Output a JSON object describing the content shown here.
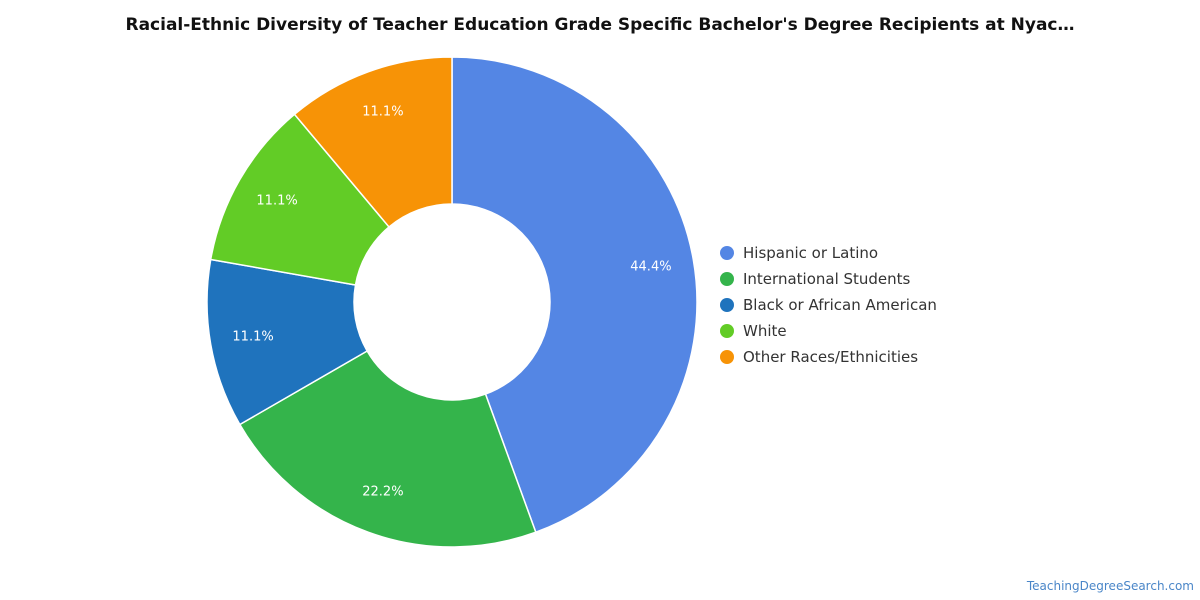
{
  "chart_data": {
    "type": "pie",
    "variant": "donut",
    "title": "Racial-Ethnic Diversity of Teacher Education Grade Specific Bachelor's Degree Recipients at Nyac…",
    "legend_position": "right",
    "slices": [
      {
        "label": "Hispanic or Latino",
        "value": 44.4,
        "display": "44.4%",
        "color": "#5486e4"
      },
      {
        "label": "International Students",
        "value": 22.2,
        "display": "22.2%",
        "color": "#34b44b"
      },
      {
        "label": "Black or African American",
        "value": 11.1,
        "display": "11.1%",
        "color": "#1f73bd"
      },
      {
        "label": "White",
        "value": 11.1,
        "display": "11.1%",
        "color": "#62cc26"
      },
      {
        "label": "Other Races/Ethnicities",
        "value": 11.1,
        "display": "11.1%",
        "color": "#f79306"
      }
    ]
  },
  "watermark": "TeachingDegreeSearch.com"
}
